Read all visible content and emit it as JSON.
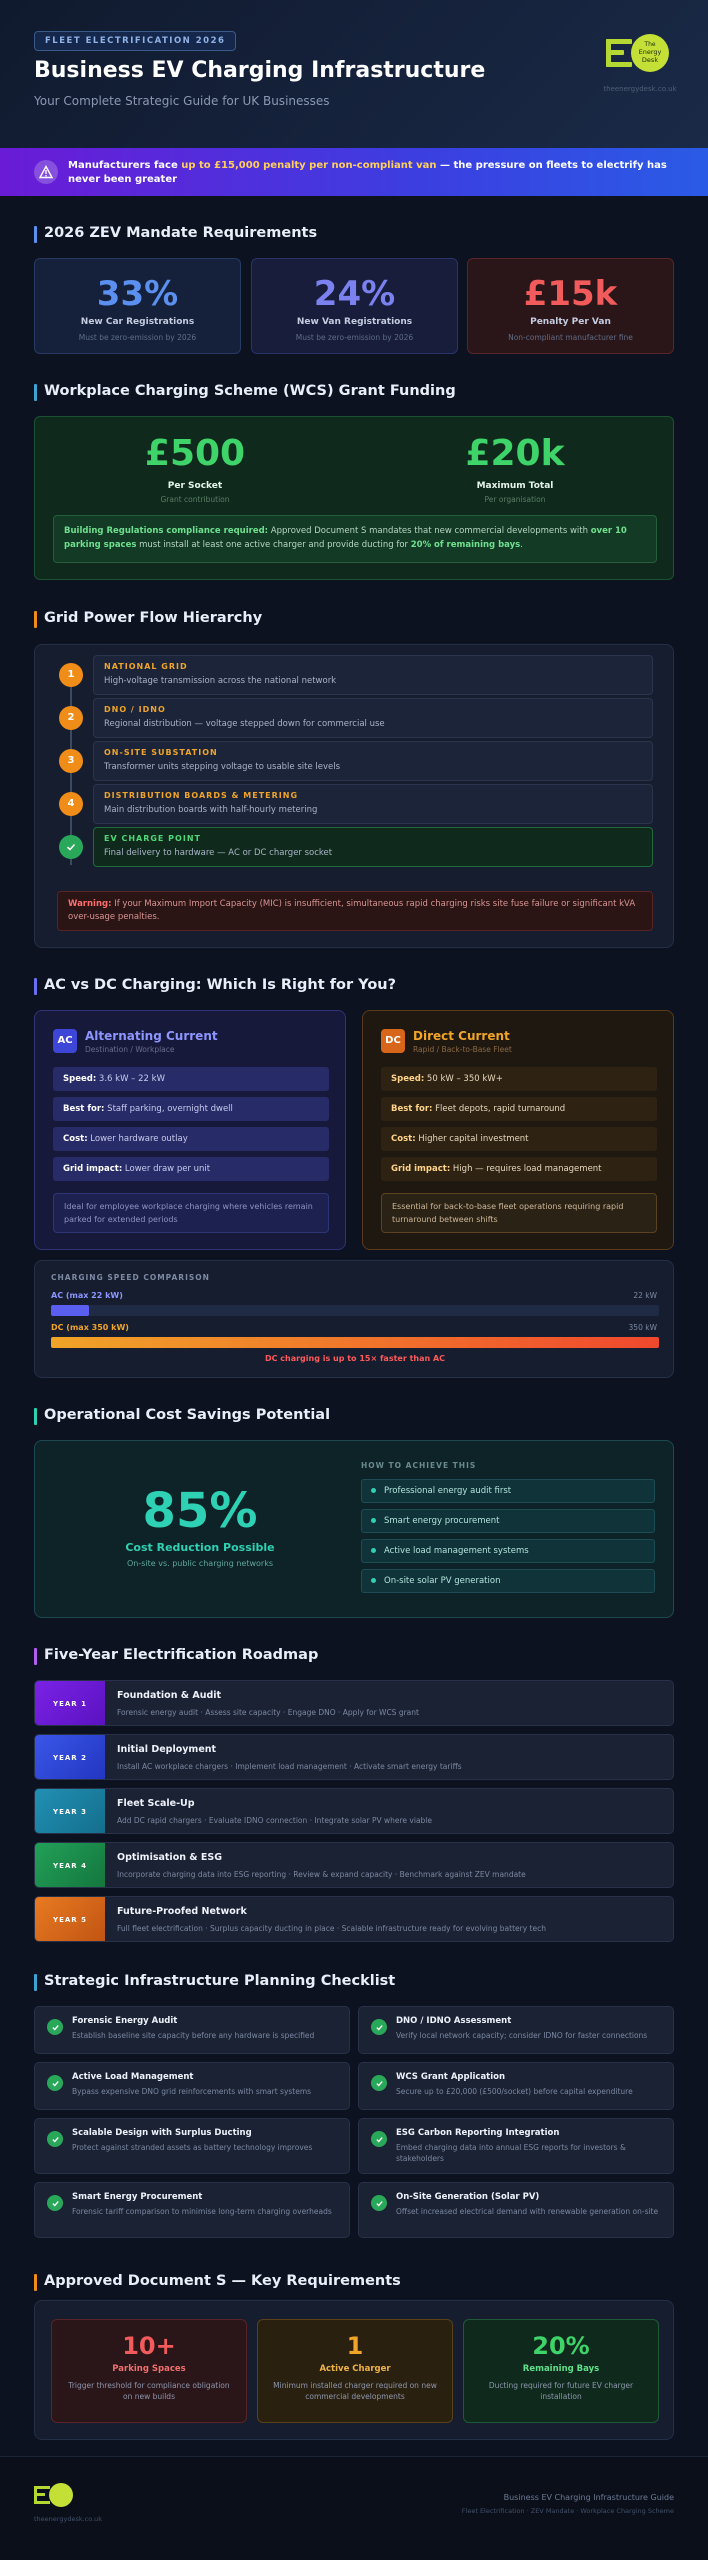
{
  "header": {
    "tag": "FLEET ELECTRIFICATION 2026",
    "title": "Business EV Charging Infrastructure",
    "subtitle": "Your Complete Strategic Guide for UK Businesses",
    "logo_text": "The Energy Desk",
    "logo_url": "theenergydesk.co.uk"
  },
  "banner": {
    "pre": "Manufacturers face ",
    "highlight": "up to £15,000 penalty per non-compliant van",
    "post": " — the pressure on fleets to electrify has never been greater"
  },
  "sections": {
    "zev": "2026 ZEV Mandate Requirements",
    "wcs": "Workplace Charging Scheme (WCS) Grant Funding",
    "grid": "Grid Power Flow Hierarchy",
    "acdc": "AC vs DC Charging: Which Is Right for You?",
    "savings": "Operational Cost Savings Potential",
    "roadmap": "Five-Year Electrification Roadmap",
    "checklist": "Strategic Infrastructure Planning Checklist",
    "docs": "Approved Document S — Key Requirements"
  },
  "zev_stats": [
    {
      "value": "33%",
      "label": "New Car Registrations",
      "note": "Must be zero-emission by 2026",
      "color": "#5b8ff0"
    },
    {
      "value": "24%",
      "label": "New Van Registrations",
      "note": "Must be zero-emission by 2026",
      "color": "#7b82f0"
    },
    {
      "value": "£15k",
      "label": "Penalty Per Van",
      "note": "Non-compliant manufacturer fine",
      "color": "#f25b5b"
    }
  ],
  "grant": {
    "a_value": "£500",
    "a_label": "Per Socket",
    "a_note": "Grant contribution",
    "b_value": "£20k",
    "b_label": "Maximum Total",
    "b_note": "Per organisation",
    "box_bold1": "Building Regulations compliance required:",
    "box_text1": " Approved Document S mandates that new commercial developments with ",
    "box_bold2": "over 10 parking spaces",
    "box_text2": " must install at least one active charger and provide ducting for ",
    "box_bold3": "20% of remaining bays",
    "box_text3": "."
  },
  "grid_steps": [
    {
      "num": "1",
      "title": "NATIONAL GRID",
      "desc": "High-voltage transmission across the national network"
    },
    {
      "num": "2",
      "title": "DNO / IDNO",
      "desc": "Regional distribution — voltage stepped down for commercial use"
    },
    {
      "num": "3",
      "title": "ON-SITE SUBSTATION",
      "desc": "Transformer units stepping voltage to usable site levels"
    },
    {
      "num": "4",
      "title": "DISTRIBUTION BOARDS & METERING",
      "desc": "Main distribution boards with half-hourly metering"
    },
    {
      "num": "",
      "title": "EV CHARGE POINT",
      "desc": "Final delivery to hardware — AC or DC charger socket"
    }
  ],
  "grid_warning": {
    "bold": "Warning:",
    "text": " If your Maximum Import Capacity (MIC) is insufficient, simultaneous rapid charging risks site fuse failure or significant kVA over-usage penalties."
  },
  "ac": {
    "badge": "AC",
    "title": "Alternating Current",
    "subtitle": "Destination / Workplace",
    "rows": [
      {
        "k": "Speed:",
        "v": " 3.6 kW – 22 kW"
      },
      {
        "k": "Best for:",
        "v": " Staff parking, overnight dwell"
      },
      {
        "k": "Cost:",
        "v": " Lower hardware outlay"
      },
      {
        "k": "Grid impact:",
        "v": " Lower draw per unit"
      }
    ],
    "note": "Ideal for employee workplace charging where vehicles remain parked for extended periods"
  },
  "dc": {
    "badge": "DC",
    "title": "Direct Current",
    "subtitle": "Rapid / Back-to-Base Fleet",
    "rows": [
      {
        "k": "Speed:",
        "v": " 50 kW – 350 kW+"
      },
      {
        "k": "Best for:",
        "v": " Fleet depots, rapid turnaround"
      },
      {
        "k": "Cost:",
        "v": " Higher capital investment"
      },
      {
        "k": "Grid impact:",
        "v": " High — requires load management"
      }
    ],
    "note": "Essential for back-to-base fleet operations requiring rapid turnaround between shifts"
  },
  "speed": {
    "heading": "CHARGING SPEED COMPARISON",
    "ac_label": "AC (max 22 kW)",
    "ac_value": "22 kW",
    "ac_fraction": 0.063,
    "dc_label": "DC (max 350 kW)",
    "dc_value": "350 kW",
    "dc_fraction": 1.0,
    "footer": "DC charging is up to 15× faster than AC"
  },
  "savings": {
    "value": "85%",
    "label": "Cost Reduction Possible",
    "note": "On-site vs. public charging networks",
    "how_heading": "HOW TO ACHIEVE THIS",
    "items": [
      "Professional energy audit first",
      "Smart energy procurement",
      "Active load management systems",
      "On-site solar PV generation"
    ]
  },
  "roadmap": [
    {
      "year": "YEAR 1",
      "title": "Foundation & Audit",
      "desc": "Forensic energy audit · Assess site capacity · Engage DNO · Apply for WCS grant",
      "color": "#6a1bd6"
    },
    {
      "year": "YEAR 2",
      "title": "Initial Deployment",
      "desc": "Install AC workplace chargers · Implement load management · Activate smart energy tariffs",
      "color": "#2f46d8"
    },
    {
      "year": "YEAR 3",
      "title": "Fleet Scale-Up",
      "desc": "Add DC rapid chargers · Evaluate IDNO connection · Integrate solar PV where viable",
      "color": "#1a7fa0"
    },
    {
      "year": "YEAR 4",
      "title": "Optimisation & ESG",
      "desc": "Incorporate charging data into ESG reporting · Review & expand capacity · Benchmark against ZEV mandate",
      "color": "#1c8a4e"
    },
    {
      "year": "YEAR 5",
      "title": "Future-Proofed Network",
      "desc": "Full fleet electrification · Surplus capacity ducting in place · Scalable infrastructure ready for evolving battery tech",
      "color": "#d8661a"
    }
  ],
  "checklist": [
    {
      "title": "Forensic Energy Audit",
      "desc": "Establish baseline site capacity before any hardware is specified"
    },
    {
      "title": "DNO / IDNO Assessment",
      "desc": "Verify local network capacity; consider IDNO for faster connections"
    },
    {
      "title": "Active Load Management",
      "desc": "Bypass expensive DNO grid reinforcements with smart systems"
    },
    {
      "title": "WCS Grant Application",
      "desc": "Secure up to £20,000 (£500/socket) before capital expenditure"
    },
    {
      "title": "Scalable Design with Surplus Ducting",
      "desc": "Protect against stranded assets as battery technology improves"
    },
    {
      "title": "ESG Carbon Reporting Integration",
      "desc": "Embed charging data into annual ESG reports for investors & stakeholders"
    },
    {
      "title": "Smart Energy Procurement",
      "desc": "Forensic tariff comparison to minimise long-term charging overheads"
    },
    {
      "title": "On-Site Generation (Solar PV)",
      "desc": "Offset increased electrical demand with renewable generation on-site"
    }
  ],
  "docs": [
    {
      "value": "10+",
      "label": "Parking Spaces",
      "note": "Trigger threshold for compliance obligation on new builds",
      "color": "#f25b5b"
    },
    {
      "value": "1",
      "label": "Active Charger",
      "note": "Minimum installed charger required on new commercial developments",
      "color": "#f0a428"
    },
    {
      "value": "20%",
      "label": "Remaining Bays",
      "note": "Ducting required for future EV charger installation",
      "color": "#3fd46a"
    }
  ],
  "footer": {
    "url": "theenergydesk.co.uk",
    "line1": "Business EV Charging Infrastructure Guide",
    "line2": "Fleet Electrification · ZEV Mandate · Workplace Charging Scheme"
  }
}
